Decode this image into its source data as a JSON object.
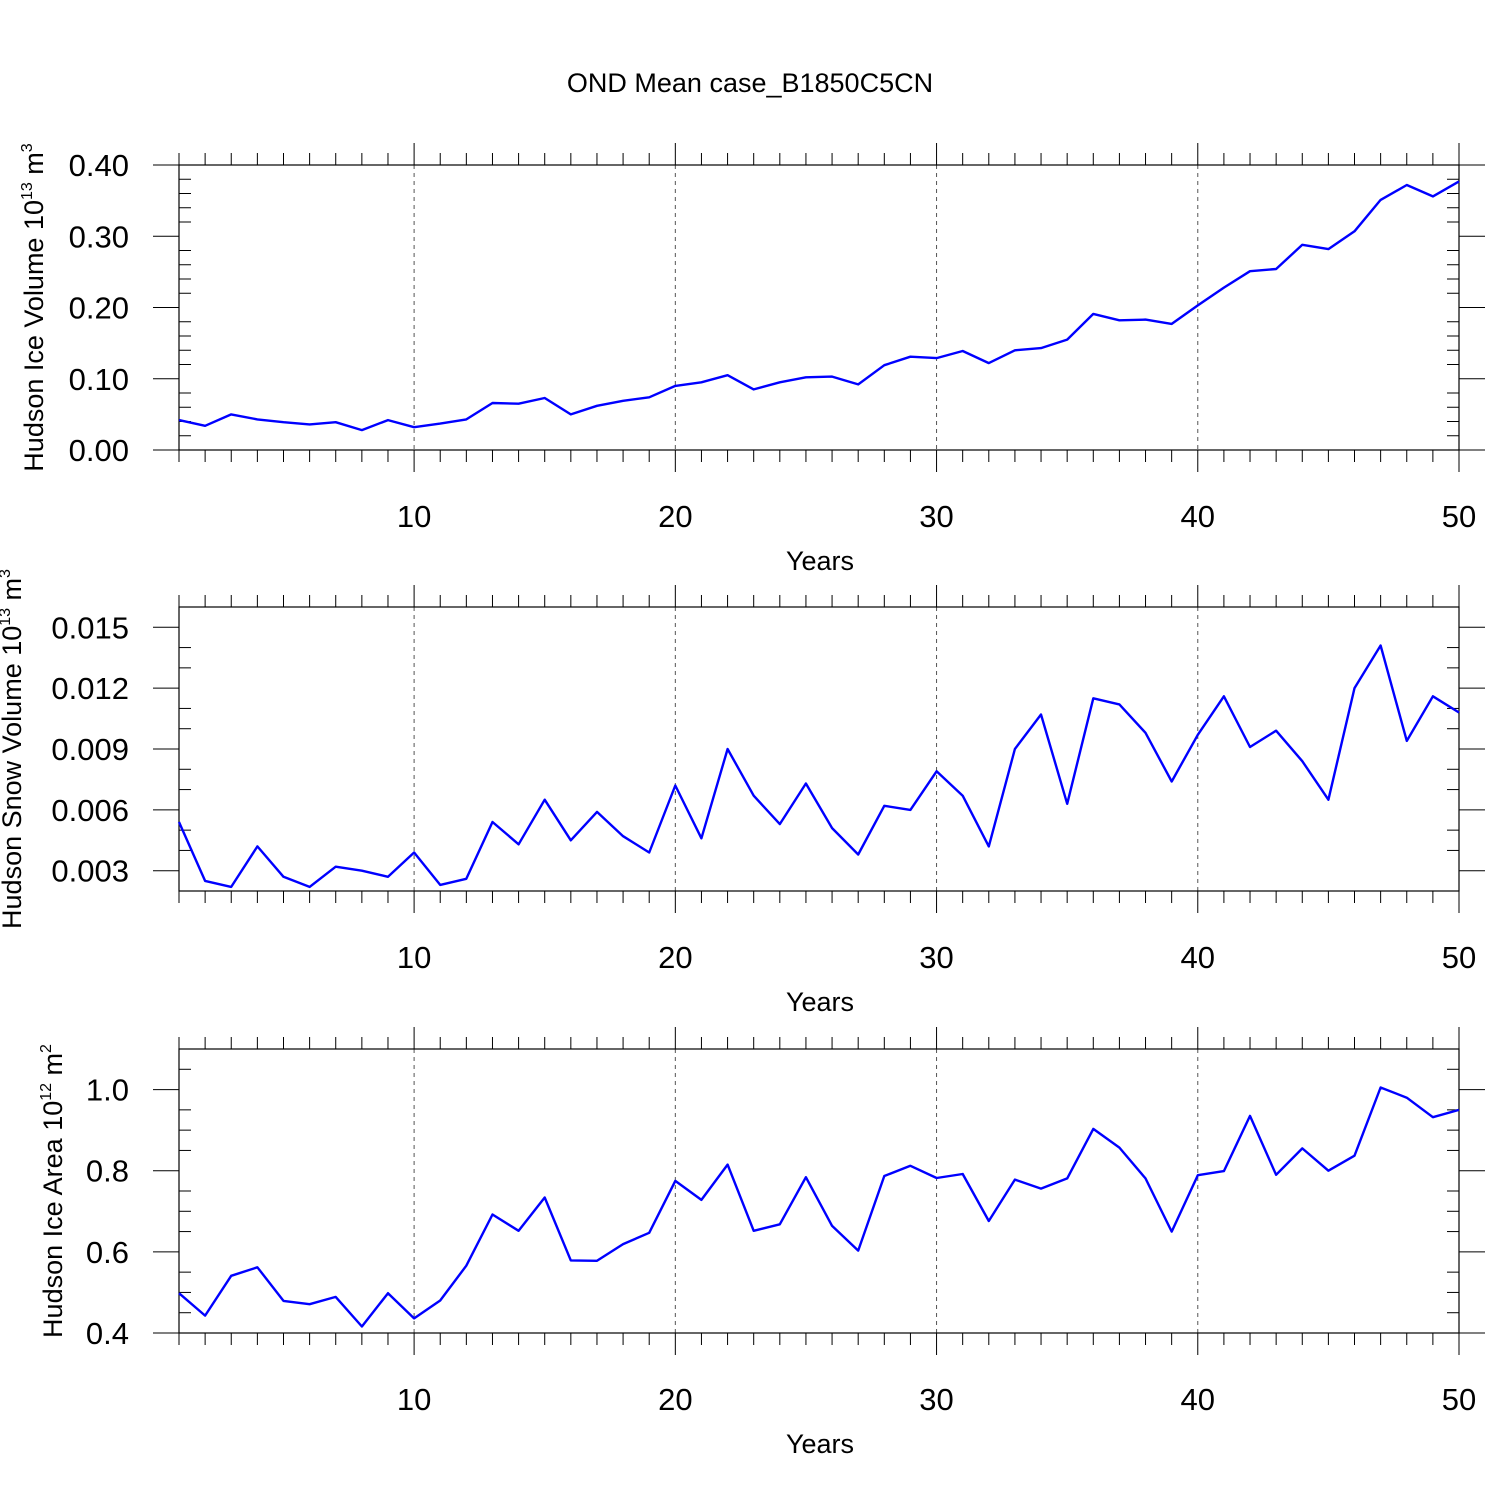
{
  "chart_data": [
    {
      "type": "line",
      "title": "OND Mean case_B1850C5CN",
      "ylabel_parts": [
        "Hudson Ice Volume 10",
        "13",
        " m",
        "3"
      ],
      "xlabel": "Years",
      "xlim": [
        1,
        50
      ],
      "ylim": [
        0,
        0.4
      ],
      "x_ticks": [
        10,
        20,
        30,
        40,
        50
      ],
      "y_ticks": [
        0.0,
        0.1,
        0.2,
        0.3,
        0.4
      ],
      "y_tick_labels": [
        "0.00",
        "0.10",
        "0.20",
        "0.30",
        "0.40"
      ],
      "x_minor_step": 1,
      "y_minor_step": 0.02,
      "grid": "vertical dashed at major x ticks",
      "line_color": "#0000ff",
      "series": [
        {
          "name": "Hudson Ice Volume",
          "x": [
            1,
            2,
            3,
            4,
            5,
            6,
            7,
            8,
            9,
            10,
            11,
            12,
            13,
            14,
            15,
            16,
            17,
            18,
            19,
            20,
            21,
            22,
            23,
            24,
            25,
            26,
            27,
            28,
            29,
            30,
            31,
            32,
            33,
            34,
            35,
            36,
            37,
            38,
            39,
            40,
            41,
            42,
            43,
            44,
            45,
            46,
            47,
            48,
            49,
            50
          ],
          "values": [
            0.042,
            0.034,
            0.05,
            0.043,
            0.039,
            0.036,
            0.039,
            0.028,
            0.042,
            0.032,
            0.037,
            0.043,
            0.066,
            0.065,
            0.073,
            0.05,
            0.062,
            0.069,
            0.074,
            0.09,
            0.095,
            0.105,
            0.085,
            0.095,
            0.102,
            0.103,
            0.092,
            0.119,
            0.131,
            0.129,
            0.139,
            0.122,
            0.14,
            0.143,
            0.155,
            0.191,
            0.182,
            0.183,
            0.177,
            0.203,
            0.228,
            0.251,
            0.254,
            0.288,
            0.282,
            0.307,
            0.351,
            0.372,
            0.356,
            0.377
          ]
        }
      ]
    },
    {
      "type": "line",
      "title": "",
      "ylabel_parts": [
        "Hudson Snow Volume 10",
        "13",
        " m",
        "3"
      ],
      "xlabel": "Years",
      "xlim": [
        1,
        50
      ],
      "ylim": [
        0.002,
        0.016
      ],
      "x_ticks": [
        10,
        20,
        30,
        40,
        50
      ],
      "y_ticks": [
        0.003,
        0.006,
        0.009,
        0.012,
        0.015
      ],
      "y_tick_labels": [
        "0.003",
        "0.006",
        "0.009",
        "0.012",
        "0.015"
      ],
      "x_minor_step": 1,
      "y_minor_step": 0.001,
      "grid": "vertical dashed at major x ticks",
      "line_color": "#0000ff",
      "series": [
        {
          "name": "Hudson Snow Volume",
          "x": [
            1,
            2,
            3,
            4,
            5,
            6,
            7,
            8,
            9,
            10,
            11,
            12,
            13,
            14,
            15,
            16,
            17,
            18,
            19,
            20,
            21,
            22,
            23,
            24,
            25,
            26,
            27,
            28,
            29,
            30,
            31,
            32,
            33,
            34,
            35,
            36,
            37,
            38,
            39,
            40,
            41,
            42,
            43,
            44,
            45,
            46,
            47,
            48,
            49,
            50
          ],
          "values": [
            0.0054,
            0.0025,
            0.0022,
            0.0042,
            0.0027,
            0.0022,
            0.0032,
            0.003,
            0.0027,
            0.0039,
            0.0023,
            0.0026,
            0.0054,
            0.0043,
            0.0065,
            0.0045,
            0.0059,
            0.0047,
            0.0039,
            0.0072,
            0.0046,
            0.009,
            0.0067,
            0.0053,
            0.0073,
            0.0051,
            0.0038,
            0.0062,
            0.006,
            0.0079,
            0.0067,
            0.0042,
            0.009,
            0.0107,
            0.0063,
            0.0115,
            0.0112,
            0.0098,
            0.0074,
            0.0097,
            0.0116,
            0.0091,
            0.0099,
            0.0084,
            0.0065,
            0.012,
            0.0141,
            0.0094,
            0.0116,
            0.0108
          ]
        }
      ]
    },
    {
      "type": "line",
      "title": "",
      "ylabel_parts": [
        "Hudson Ice Area 10",
        "12",
        " m",
        "2"
      ],
      "xlabel": "Years",
      "xlim": [
        1,
        50
      ],
      "ylim": [
        0.4,
        1.1
      ],
      "x_ticks": [
        10,
        20,
        30,
        40,
        50
      ],
      "y_ticks": [
        0.4,
        0.6,
        0.8,
        1.0
      ],
      "y_tick_labels": [
        "0.4",
        "0.6",
        "0.8",
        "1.0"
      ],
      "x_minor_step": 1,
      "y_minor_step": 0.05,
      "grid": "vertical dashed at major x ticks",
      "line_color": "#0000ff",
      "series": [
        {
          "name": "Hudson Ice Area",
          "x": [
            1,
            2,
            3,
            4,
            5,
            6,
            7,
            8,
            9,
            10,
            11,
            12,
            13,
            14,
            15,
            16,
            17,
            18,
            19,
            20,
            21,
            22,
            23,
            24,
            25,
            26,
            27,
            28,
            29,
            30,
            31,
            32,
            33,
            34,
            35,
            36,
            37,
            38,
            39,
            40,
            41,
            42,
            43,
            44,
            45,
            46,
            47,
            48,
            49,
            50
          ],
          "values": [
            0.498,
            0.443,
            0.541,
            0.562,
            0.479,
            0.471,
            0.489,
            0.416,
            0.498,
            0.436,
            0.48,
            0.566,
            0.692,
            0.652,
            0.734,
            0.579,
            0.578,
            0.619,
            0.647,
            0.775,
            0.728,
            0.815,
            0.652,
            0.668,
            0.784,
            0.664,
            0.603,
            0.787,
            0.812,
            0.782,
            0.792,
            0.676,
            0.778,
            0.756,
            0.781,
            0.903,
            0.857,
            0.781,
            0.65,
            0.789,
            0.799,
            0.935,
            0.79,
            0.855,
            0.8,
            0.837,
            1.005,
            0.98,
            0.932,
            0.95
          ]
        }
      ]
    }
  ]
}
